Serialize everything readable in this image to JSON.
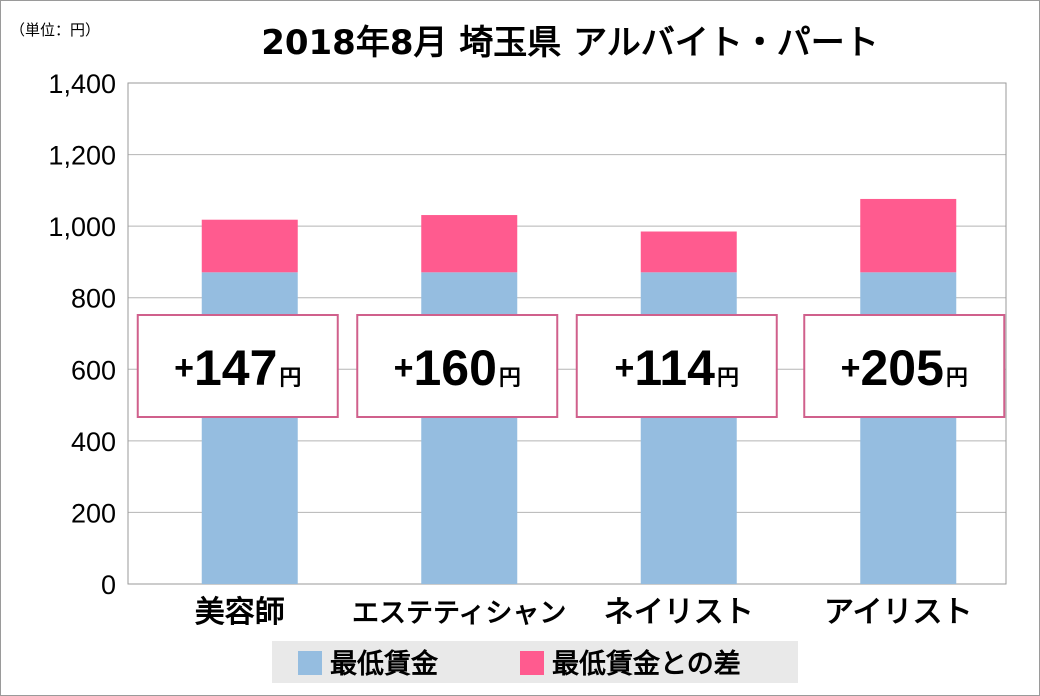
{
  "chart_data": {
    "type": "bar",
    "stacked": true,
    "title": "2018年8月 埼玉県 アルバイト・パート",
    "unit_label": "（単位：円）",
    "categories": [
      "美容師",
      "エステティシャン",
      "ネイリスト",
      "アイリスト"
    ],
    "series": [
      {
        "name": "最低賃金",
        "values": [
          871,
          871,
          871,
          871
        ],
        "color": "#95bde0"
      },
      {
        "name": "最低賃金との差",
        "values": [
          147,
          160,
          114,
          205
        ],
        "color": "#ff5b8f"
      }
    ],
    "diff_labels": [
      {
        "plus": "+",
        "value": "147",
        "yen": "円"
      },
      {
        "plus": "+",
        "value": "160",
        "yen": "円"
      },
      {
        "plus": "+",
        "value": "114",
        "yen": "円"
      },
      {
        "plus": "+",
        "value": "205",
        "yen": "円"
      }
    ],
    "ylim": [
      0,
      1400
    ],
    "yticks": [
      0,
      200,
      400,
      600,
      800,
      1000,
      1200,
      1400
    ],
    "ytick_labels": [
      "0",
      "200",
      "400",
      "600",
      "800",
      "1,000",
      "1,200",
      "1,400"
    ],
    "grid": true,
    "label_box_border": "#d0608c",
    "legend_position": "bottom"
  }
}
